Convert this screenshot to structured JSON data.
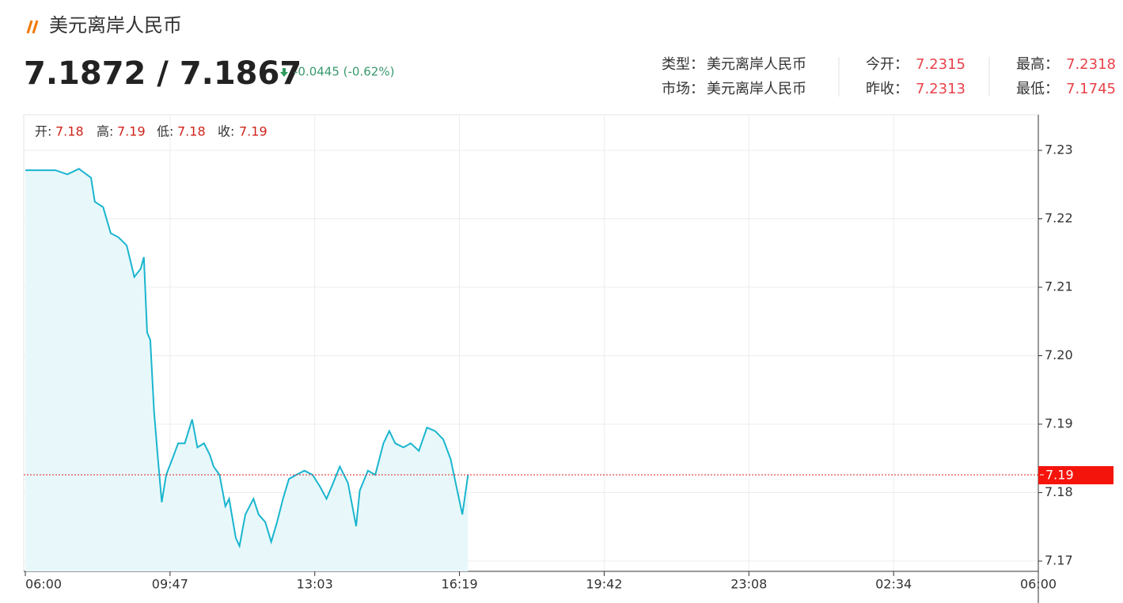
{
  "header": {
    "title": "美元离岸人民币",
    "price": "7.1872 / 7.1867",
    "change": "-0.0445 (-0.62%)",
    "info": [
      {
        "label": "类型：",
        "value": "美元离岸人民币"
      },
      {
        "label": "今开：",
        "value": "7.2315"
      },
      {
        "label": "最高：",
        "value": "7.2318"
      },
      {
        "label": "市场：",
        "value": "美元离岸人民币"
      },
      {
        "label": "昨收：",
        "value": "7.2313"
      },
      {
        "label": "最低：",
        "value": "7.1745"
      }
    ]
  },
  "ohlc": [
    {
      "label": "开:",
      "value": 7.18
    },
    {
      "label": "高:",
      "value": 7.19
    },
    {
      "label": "低:",
      "value": 7.18
    },
    {
      "label": "收:",
      "value": 7.19
    }
  ],
  "chart_data": {
    "type": "line",
    "color": "#1ab5cf",
    "fill": "#e8f8fa",
    "grid": true,
    "x": [
      0,
      22,
      47,
      66,
      84,
      103,
      109,
      122,
      134,
      146,
      159,
      165,
      171,
      181,
      186,
      191,
      196,
      202,
      208,
      214,
      221,
      230,
      238,
      247,
      257,
      264,
      273,
      281,
      286,
      294,
      302,
      307,
      316,
      321,
      329,
      340,
      347,
      356,
      364,
      372,
      380,
      388,
      398,
      409,
      420,
      430,
      439,
      446,
      457,
      468,
      479,
      484,
      495,
      505,
      516,
      524,
      532,
      543,
      553,
      564,
      575,
      586,
      597,
      607,
      616,
      623,
      631
    ],
    "values": [
      7.2271,
      7.2271,
      7.2271,
      7.2265,
      7.2273,
      7.226,
      7.2225,
      7.2217,
      7.2179,
      7.2173,
      7.2161,
      7.2138,
      7.2115,
      7.2127,
      7.2144,
      7.2034,
      7.2023,
      7.1918,
      7.1849,
      7.1786,
      7.1826,
      7.1849,
      7.1872,
      7.1872,
      7.1907,
      7.1866,
      7.1872,
      7.1855,
      7.1838,
      7.1826,
      7.178,
      7.1791,
      7.1734,
      7.1722,
      7.1768,
      7.1791,
      7.1768,
      7.1757,
      7.1728,
      7.1757,
      7.1791,
      7.182,
      7.1826,
      7.1832,
      7.1826,
      7.1809,
      7.1791,
      7.1809,
      7.1838,
      7.1814,
      7.1751,
      7.1803,
      7.1832,
      7.1826,
      7.1872,
      7.189,
      7.1872,
      7.1866,
      7.1872,
      7.1861,
      7.1895,
      7.189,
      7.1878,
      7.1849,
      7.1803,
      7.1768,
      7.1826
    ],
    "xlim": [
      0,
      1440
    ],
    "xticks": [
      {
        "value": 0,
        "label": "06:00"
      },
      {
        "value": 227,
        "label": "09:47"
      },
      {
        "value": 423,
        "label": "13:03"
      },
      {
        "value": 619,
        "label": "16:19"
      },
      {
        "value": 822,
        "label": "19:42"
      },
      {
        "value": 1028,
        "label": "23:08"
      },
      {
        "value": 1234,
        "label": "02:34"
      },
      {
        "value": 1440,
        "label": "06:00"
      }
    ],
    "ylim": [
      7.1685,
      7.2352
    ],
    "yticks": [
      7.17,
      7.18,
      7.19,
      {
        "value": 7.2,
        "label": "7.20"
      },
      7.21,
      7.22,
      7.23
    ],
    "last_price_label": "7.19"
  }
}
